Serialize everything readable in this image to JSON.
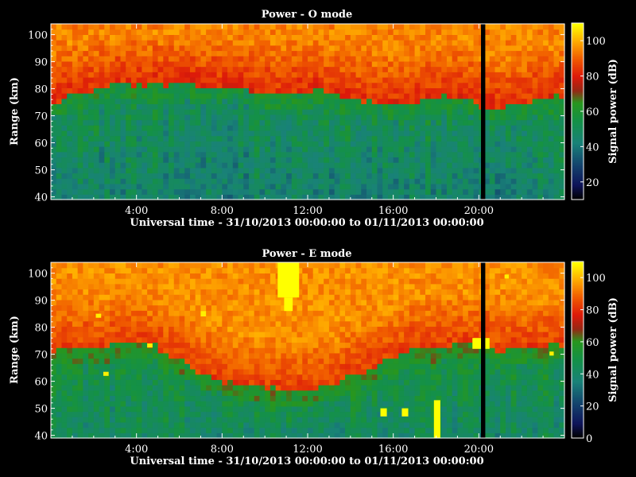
{
  "chart_data": [
    {
      "type": "heatmap",
      "title": "Power - O mode",
      "xlabel": "Universal time - 31/10/2013 00:00:00 to 01/11/2013 00:00:00",
      "ylabel": "Range (km)",
      "colorbar_label": "Signal power (dB)",
      "x_ticks": [
        "4:00",
        "8:00",
        "12:00",
        "16:00",
        "20:00"
      ],
      "x_tick_hours": [
        4,
        8,
        12,
        16,
        20
      ],
      "xlim_hours": [
        0,
        24
      ],
      "y_ticks": [
        40,
        50,
        60,
        70,
        80,
        90,
        100
      ],
      "ylim": [
        39,
        104
      ],
      "colorbar_ticks": [
        20,
        40,
        60,
        80,
        100
      ],
      "colorbar_range": [
        10,
        110
      ],
      "boundary_hours": [
        0,
        1,
        2,
        3,
        4,
        5,
        6,
        7,
        8,
        9,
        10,
        11,
        12,
        13,
        14,
        15,
        16,
        17,
        18,
        19,
        20,
        21,
        22,
        23,
        24
      ],
      "boundary_km": [
        73,
        76,
        77,
        80,
        80,
        80,
        81,
        80,
        79,
        79,
        77,
        76,
        78,
        77,
        74,
        73,
        74,
        73,
        75,
        76,
        73,
        71,
        73,
        75,
        76
      ],
      "upper_layer_db_range": [
        70,
        95
      ],
      "lower_layer_db_range": [
        30,
        55
      ],
      "data_gap_hours": [
        20.1,
        20.3
      ],
      "highlights": []
    },
    {
      "type": "heatmap",
      "title": "Power - E mode",
      "xlabel": "Universal time - 31/10/2013 00:00:00 to 01/11/2013 00:00:00",
      "ylabel": "Range (km)",
      "colorbar_label": "Signal power (dB)",
      "x_ticks": [
        "4:00",
        "8:00",
        "12:00",
        "16:00",
        "20:00"
      ],
      "x_tick_hours": [
        4,
        8,
        12,
        16,
        20
      ],
      "xlim_hours": [
        0,
        24
      ],
      "y_ticks": [
        40,
        50,
        60,
        70,
        80,
        90,
        100
      ],
      "ylim": [
        39,
        104
      ],
      "colorbar_ticks": [
        0,
        20,
        40,
        60,
        80,
        100
      ],
      "colorbar_range": [
        0,
        110
      ],
      "boundary_hours": [
        0,
        1,
        2,
        3,
        4,
        5,
        6,
        7,
        8,
        9,
        10,
        11,
        12,
        13,
        14,
        15,
        16,
        17,
        18,
        19,
        20,
        21,
        22,
        23,
        24
      ],
      "boundary_km": [
        70,
        71,
        71,
        72,
        73,
        71,
        67,
        62,
        59,
        57,
        56,
        55,
        55,
        57,
        60,
        64,
        68,
        71,
        72,
        73,
        72,
        70,
        71,
        71,
        72
      ],
      "upper_layer_db_range": [
        70,
        95
      ],
      "lower_layer_db_range": [
        25,
        55
      ],
      "data_gap_hours": [
        20.1,
        20.3
      ],
      "highlights": [
        {
          "h0": 10.6,
          "h1": 11.6,
          "r0": 91,
          "r1": 104,
          "db": 110
        },
        {
          "h0": 10.9,
          "h1": 11.3,
          "r0": 86,
          "r1": 91,
          "db": 110
        },
        {
          "h0": 2.1,
          "h1": 2.35,
          "r0": 83.5,
          "r1": 85,
          "db": 108
        },
        {
          "h0": 7.0,
          "h1": 7.25,
          "r0": 84,
          "r1": 86,
          "db": 108
        },
        {
          "h0": 4.5,
          "h1": 4.75,
          "r0": 72.5,
          "r1": 74,
          "db": 108
        },
        {
          "h0": 2.45,
          "h1": 2.7,
          "r0": 62,
          "r1": 63.5,
          "db": 108
        },
        {
          "h0": 15.4,
          "h1": 15.7,
          "r0": 47,
          "r1": 50,
          "db": 110
        },
        {
          "h0": 16.4,
          "h1": 16.7,
          "r0": 47,
          "r1": 50,
          "db": 110
        },
        {
          "h0": 17.9,
          "h1": 18.2,
          "r0": 39,
          "r1": 53,
          "db": 110
        },
        {
          "h0": 19.7,
          "h1": 20.5,
          "r0": 72,
          "r1": 76,
          "db": 110
        },
        {
          "h0": 21.2,
          "h1": 21.4,
          "r0": 98,
          "r1": 99.5,
          "db": 108
        },
        {
          "h0": 23.3,
          "h1": 23.5,
          "r0": 69.5,
          "r1": 71,
          "db": 108
        }
      ]
    }
  ]
}
